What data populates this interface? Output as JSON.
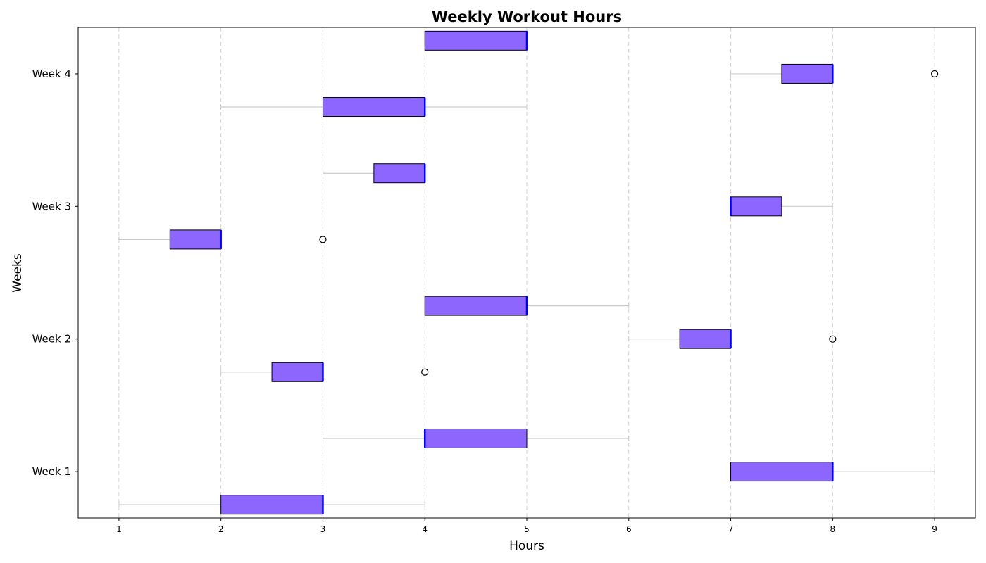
{
  "chart_data": {
    "type": "boxplot",
    "orientation": "horizontal",
    "title": "Weekly Workout Hours",
    "xlabel": "Hours",
    "ylabel": "Weeks",
    "xlim": [
      0.6,
      9.4
    ],
    "xticks": [
      1,
      2,
      3,
      4,
      5,
      6,
      7,
      8,
      9
    ],
    "ylim": [
      0.65,
      4.35
    ],
    "yticks": [
      {
        "label": "Week 1",
        "value": 1
      },
      {
        "label": "Week 2",
        "value": 2
      },
      {
        "label": "Week 3",
        "value": 3
      },
      {
        "label": "Week 4",
        "value": 4
      }
    ],
    "grid": "x-dashed",
    "box_color": "#8c66ff",
    "median_color": "#0000ff",
    "whisker_color": "#cccccc",
    "boxes": [
      {
        "week": "Week 1",
        "y": 0.75,
        "whisker_low": 1,
        "q1": 2,
        "median": 3,
        "q3": 3,
        "whisker_high": 4,
        "outliers": []
      },
      {
        "week": "Week 1",
        "y": 1.0,
        "whisker_low": 7,
        "q1": 7,
        "median": 8,
        "q3": 8,
        "whisker_high": 9,
        "outliers": []
      },
      {
        "week": "Week 1",
        "y": 1.25,
        "whisker_low": 3,
        "q1": 4,
        "median": 4,
        "q3": 5,
        "whisker_high": 6,
        "outliers": []
      },
      {
        "week": "Week 2",
        "y": 1.75,
        "whisker_low": 2,
        "q1": 2.5,
        "median": 3,
        "q3": 3,
        "whisker_high": 3,
        "outliers": [
          4
        ]
      },
      {
        "week": "Week 2",
        "y": 2.0,
        "whisker_low": 6,
        "q1": 6.5,
        "median": 7,
        "q3": 7,
        "whisker_high": 7,
        "outliers": [
          8
        ]
      },
      {
        "week": "Week 2",
        "y": 2.25,
        "whisker_low": 4,
        "q1": 4,
        "median": 5,
        "q3": 5,
        "whisker_high": 6,
        "outliers": []
      },
      {
        "week": "Week 3",
        "y": 2.75,
        "whisker_low": 1,
        "q1": 1.5,
        "median": 2,
        "q3": 2,
        "whisker_high": 2,
        "outliers": [
          3
        ]
      },
      {
        "week": "Week 3",
        "y": 3.0,
        "whisker_low": 7,
        "q1": 7,
        "median": 7,
        "q3": 7.5,
        "whisker_high": 8,
        "outliers": []
      },
      {
        "week": "Week 3",
        "y": 3.25,
        "whisker_low": 3,
        "q1": 3.5,
        "median": 4,
        "q3": 4,
        "whisker_high": 4,
        "outliers": []
      },
      {
        "week": "Week 4",
        "y": 3.75,
        "whisker_low": 2,
        "q1": 3,
        "median": 4,
        "q3": 4,
        "whisker_high": 5,
        "outliers": []
      },
      {
        "week": "Week 4",
        "y": 4.0,
        "whisker_low": 7,
        "q1": 7.5,
        "median": 8,
        "q3": 8,
        "whisker_high": 8,
        "outliers": [
          9
        ]
      },
      {
        "week": "Week 4",
        "y": 4.25,
        "whisker_low": 4,
        "q1": 4,
        "median": 5,
        "q3": 5,
        "whisker_high": 5,
        "outliers": []
      }
    ]
  }
}
